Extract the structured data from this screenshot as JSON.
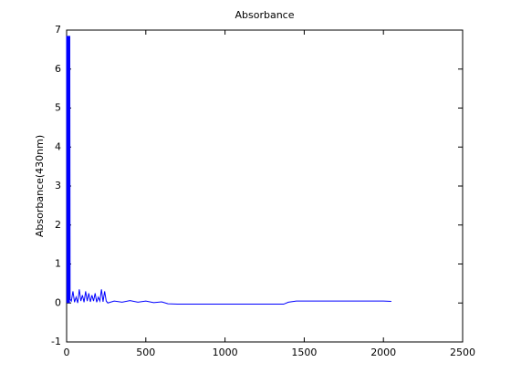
{
  "chart_data": {
    "type": "line",
    "title": "Absorbance",
    "y_label": "Absorbance(430nm)",
    "x": [
      0,
      2,
      4,
      6,
      8,
      10,
      12,
      14,
      16,
      18,
      20,
      22,
      30,
      40,
      50,
      60,
      70,
      80,
      90,
      100,
      110,
      120,
      130,
      140,
      150,
      160,
      170,
      180,
      190,
      200,
      210,
      220,
      230,
      240,
      250,
      260,
      300,
      350,
      400,
      450,
      500,
      550,
      600,
      640,
      700,
      1000,
      1370,
      1400,
      1450,
      1700,
      2000,
      2050
    ],
    "series": [
      {
        "color": "#0000ff",
        "values": [
          6.85,
          0,
          6.85,
          0,
          6.85,
          0,
          6.85,
          0,
          6.85,
          0,
          6.85,
          0.1,
          0.05,
          0.3,
          0.02,
          0.15,
          0.0,
          0.35,
          0.05,
          0.2,
          0.02,
          0.3,
          0.05,
          0.25,
          0.03,
          0.2,
          0.05,
          0.25,
          0.02,
          0.15,
          0.05,
          0.35,
          0.03,
          0.3,
          0.05,
          0.0,
          0.05,
          0.02,
          0.06,
          0.02,
          0.05,
          0.01,
          0.03,
          -0.02,
          -0.03,
          -0.03,
          -0.03,
          0.02,
          0.05,
          0.05,
          0.05,
          0.04
        ]
      }
    ],
    "xlim": [
      0,
      2500
    ],
    "xticks": [
      0,
      500,
      1000,
      1500,
      2000,
      2500
    ],
    "ylim": [
      -1,
      7
    ],
    "yticks": [
      -1,
      0,
      1,
      2,
      3,
      4,
      5,
      6,
      7
    ]
  }
}
